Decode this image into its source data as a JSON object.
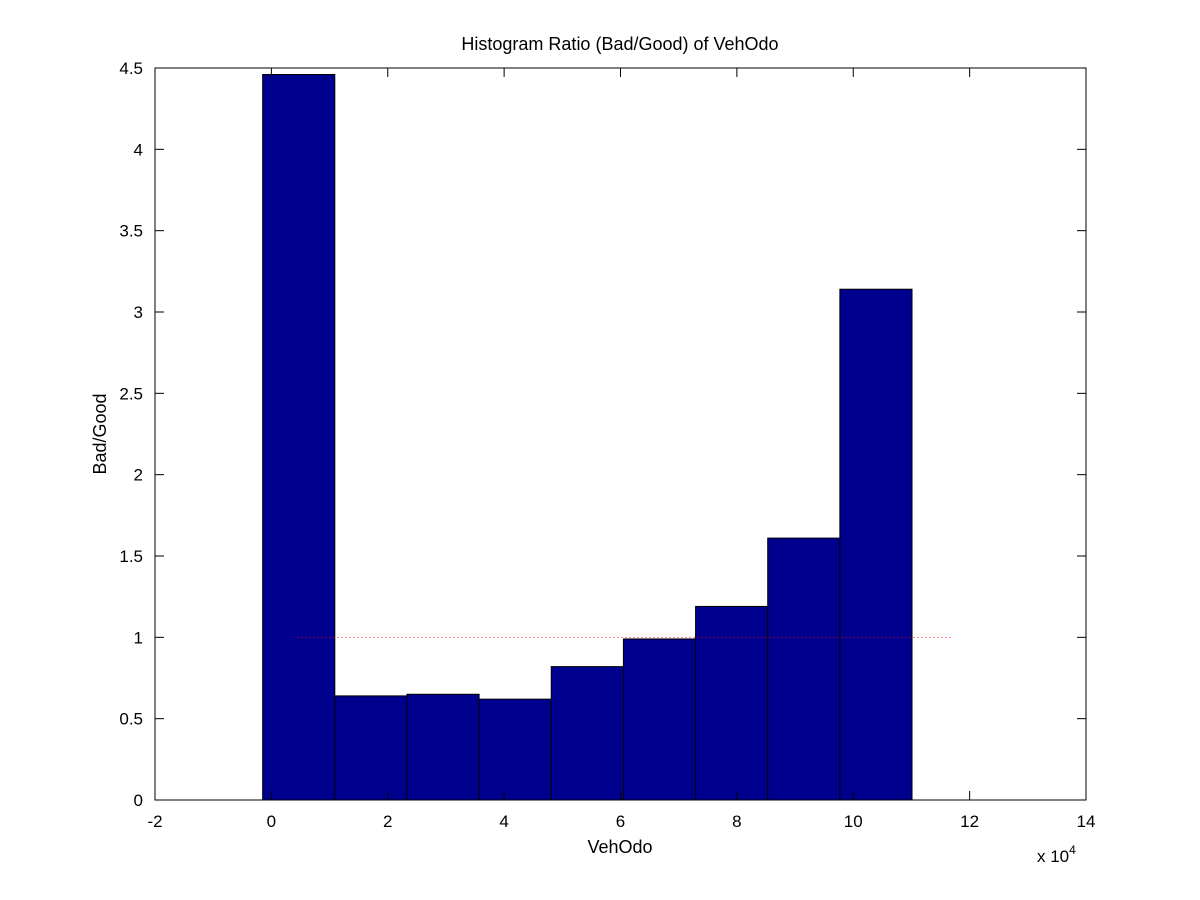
{
  "chart_data": {
    "type": "bar",
    "title": "Histogram Ratio (Bad/Good) of VehOdo",
    "xlabel": "VehOdo",
    "ylabel": "Bad/Good",
    "x_scale_label": "x 10",
    "x_scale_exponent": "4",
    "xlim": [
      -2,
      14
    ],
    "ylim": [
      0,
      4.5
    ],
    "xticks": [
      -2,
      0,
      2,
      4,
      6,
      8,
      10,
      12,
      14
    ],
    "yticks": [
      0,
      0.5,
      1,
      1.5,
      2,
      2.5,
      3,
      3.5,
      4,
      4.5
    ],
    "ytick_labels": [
      "0",
      "0.5",
      "1",
      "1.5",
      "2",
      "2.5",
      "3",
      "3.5",
      "4",
      "4.5"
    ],
    "bins": [
      {
        "x0": -0.15,
        "x1": 1.09,
        "value": 4.46
      },
      {
        "x0": 1.09,
        "x1": 2.33,
        "value": 0.64
      },
      {
        "x0": 2.33,
        "x1": 3.57,
        "value": 0.65
      },
      {
        "x0": 3.57,
        "x1": 4.81,
        "value": 0.62
      },
      {
        "x0": 4.81,
        "x1": 6.05,
        "value": 0.82
      },
      {
        "x0": 6.05,
        "x1": 7.29,
        "value": 0.99
      },
      {
        "x0": 7.29,
        "x1": 8.53,
        "value": 1.19
      },
      {
        "x0": 8.53,
        "x1": 9.77,
        "value": 1.61
      },
      {
        "x0": 9.77,
        "x1": 11.01,
        "value": 3.14
      }
    ],
    "reference_line": {
      "y": 1,
      "x0": 0.45,
      "x1": 11.7,
      "color": "#ff0000",
      "style": "dotted"
    },
    "bar_color": "#00008f",
    "bar_edge_color": "#000000",
    "grid": false,
    "legend": "none"
  }
}
